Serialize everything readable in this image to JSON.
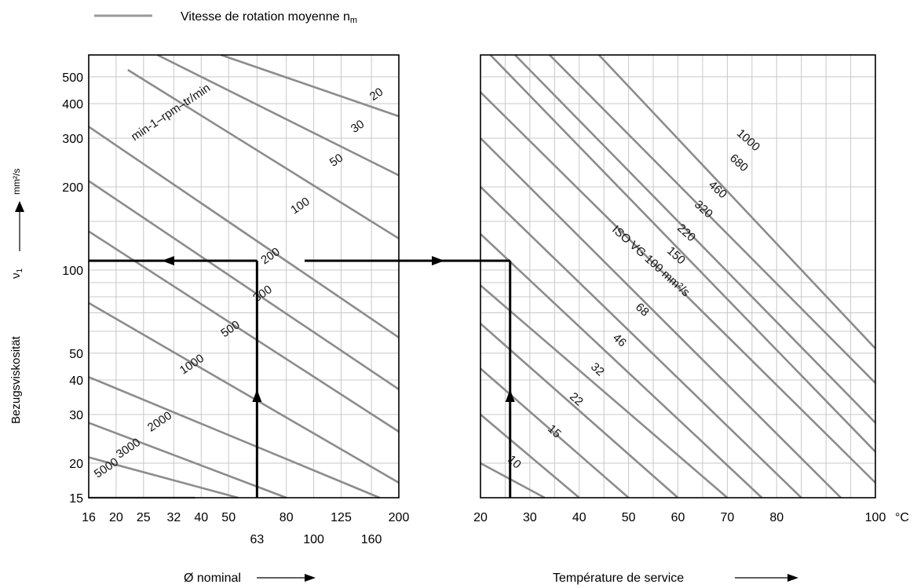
{
  "legend": {
    "text": "Vitesse de rotation moyenne n",
    "subscript": "m",
    "color": "#9a9a9a"
  },
  "y_axis": {
    "title": "Bezugsviskosität",
    "symbol": "ν",
    "symbol_subscript": "1",
    "unit": "mm²/s"
  },
  "colors": {
    "curve": "#8c8c8c",
    "grid": "#c8c8c8",
    "frame": "#000000",
    "arrow": "#000000"
  },
  "chart_data": [
    {
      "type": "line",
      "xlabel": "Ø nominal",
      "ylabel": "Bezugsviskosität ν1",
      "x_scale": "log",
      "y_scale": "log",
      "xlim": [
        16,
        200
      ],
      "ylim": [
        15,
        600
      ],
      "y_unit": "mm²/s",
      "yticks": [
        15,
        20,
        30,
        40,
        50,
        100,
        200,
        300,
        400,
        500
      ],
      "xticks_top_row": [
        16,
        20,
        25,
        32,
        40,
        50,
        80,
        125,
        200
      ],
      "xticks_bottom_row": [
        63,
        100,
        160
      ],
      "series_label_text": "min-1–rpm–tr/min",
      "series": [
        {
          "name": "20",
          "points": [
            [
              47,
              600
            ],
            [
              200,
              360
            ]
          ]
        },
        {
          "name": "30",
          "points": [
            [
              28,
              600
            ],
            [
              200,
              220
            ]
          ]
        },
        {
          "name": "50",
          "points": [
            [
              22,
              530
            ],
            [
              200,
              130
            ]
          ]
        },
        {
          "name": "100",
          "points": [
            [
              16,
              330
            ],
            [
              200,
              57
            ]
          ]
        },
        {
          "name": "200",
          "points": [
            [
              16,
              210
            ],
            [
              200,
              37
            ]
          ]
        },
        {
          "name": "300",
          "points": [
            [
              16,
              138
            ],
            [
              200,
              26
            ]
          ]
        },
        {
          "name": "500",
          "points": [
            [
              16,
              76
            ],
            [
              200,
              17
            ]
          ]
        },
        {
          "name": "1000",
          "points": [
            [
              16,
              41
            ],
            [
              171,
              15
            ]
          ]
        },
        {
          "name": "2000",
          "points": [
            [
              16,
              28
            ],
            [
              80,
              15
            ]
          ]
        },
        {
          "name": "3000",
          "points": [
            [
              16,
              21
            ],
            [
              54,
              15
            ]
          ]
        },
        {
          "name": "5000",
          "points": [
            [
              16,
              15
            ],
            [
              38,
              15
            ]
          ]
        }
      ],
      "example": {
        "nominal_diameter": 63,
        "viscosity": 108
      }
    },
    {
      "type": "line",
      "xlabel": "Température de service",
      "x_unit": "°C",
      "y_scale": "log",
      "xlim": [
        20,
        100
      ],
      "ylim": [
        15,
        600
      ],
      "xticks": [
        20,
        30,
        40,
        50,
        60,
        70,
        80,
        100
      ],
      "series_label_text": "ISO VG 100 mm²/s",
      "series": [
        {
          "name": "10",
          "points": [
            [
              20,
              20
            ],
            [
              33,
              15
            ]
          ]
        },
        {
          "name": "15",
          "points": [
            [
              20,
              30
            ],
            [
              40,
              15
            ]
          ]
        },
        {
          "name": "22",
          "points": [
            [
              20,
              44
            ],
            [
              50,
              15
            ]
          ]
        },
        {
          "name": "32",
          "points": [
            [
              20,
              64
            ],
            [
              60,
              15
            ]
          ]
        },
        {
          "name": "46",
          "points": [
            [
              20,
              88
            ],
            [
              70,
              15
            ]
          ]
        },
        {
          "name": "68",
          "points": [
            [
              20,
              135
            ],
            [
              77,
              15
            ]
          ]
        },
        {
          "name": "100",
          "points": [
            [
              20,
              200
            ],
            [
              85,
              15
            ]
          ]
        },
        {
          "name": "150",
          "points": [
            [
              20,
              300
            ],
            [
              93,
              15
            ]
          ]
        },
        {
          "name": "220",
          "points": [
            [
              20,
              440
            ],
            [
              100,
              17
            ]
          ]
        },
        {
          "name": "320",
          "points": [
            [
              22,
              600
            ],
            [
              100,
              22
            ]
          ]
        },
        {
          "name": "460",
          "points": [
            [
              27,
              600
            ],
            [
              100,
              28
            ]
          ]
        },
        {
          "name": "680",
          "points": [
            [
              34,
              600
            ],
            [
              100,
              39
            ]
          ]
        },
        {
          "name": "1000",
          "points": [
            [
              44,
              600
            ],
            [
              100,
              52
            ]
          ]
        }
      ],
      "example": {
        "temperature": 26,
        "viscosity": 108
      }
    }
  ]
}
